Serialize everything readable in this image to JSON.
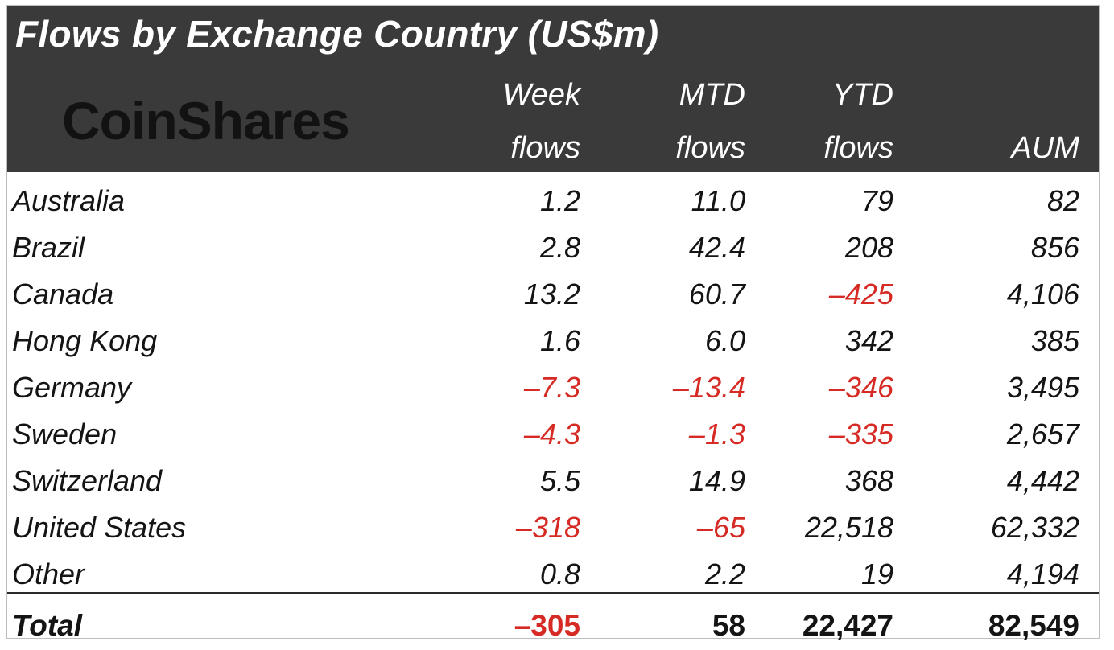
{
  "header": {
    "title": "Flows by Exchange Country (US$m)",
    "logo": "CoinShares",
    "columns": [
      {
        "line1": "Week",
        "line2": "flows"
      },
      {
        "line1": "MTD",
        "line2": "flows"
      },
      {
        "line1": "YTD",
        "line2": "flows"
      },
      {
        "line1": "",
        "line2": "AUM"
      }
    ]
  },
  "chart_data": {
    "type": "table",
    "title": "Flows by Exchange Country (US$m)",
    "columns": [
      "Week flows",
      "MTD flows",
      "YTD flows",
      "AUM"
    ],
    "rows": [
      {
        "country": "Australia",
        "week": "1.2",
        "mtd": "11.0",
        "ytd": "79",
        "aum": "82"
      },
      {
        "country": "Brazil",
        "week": "2.8",
        "mtd": "42.4",
        "ytd": "208",
        "aum": "856"
      },
      {
        "country": "Canada",
        "week": "13.2",
        "mtd": "60.7",
        "ytd": "-425",
        "aum": "4,106"
      },
      {
        "country": "Hong Kong",
        "week": "1.6",
        "mtd": "6.0",
        "ytd": "342",
        "aum": "385"
      },
      {
        "country": "Germany",
        "week": "-7.3",
        "mtd": "-13.4",
        "ytd": "-346",
        "aum": "3,495"
      },
      {
        "country": "Sweden",
        "week": "-4.3",
        "mtd": "-1.3",
        "ytd": "-335",
        "aum": "2,657"
      },
      {
        "country": "Switzerland",
        "week": "5.5",
        "mtd": "14.9",
        "ytd": "368",
        "aum": "4,442"
      },
      {
        "country": "United States",
        "week": "-318",
        "mtd": "-65",
        "ytd": "22,518",
        "aum": "62,332"
      },
      {
        "country": "Other",
        "week": "0.8",
        "mtd": "2.2",
        "ytd": "19",
        "aum": "4,194"
      }
    ],
    "total": {
      "country": "Total",
      "week": "-305",
      "mtd": "58",
      "ytd": "22,427",
      "aum": "82,549"
    }
  },
  "colors": {
    "header_bg": "#3a3a3a",
    "header_text": "#ffffff",
    "negative": "#d62b25",
    "text": "#141414"
  }
}
